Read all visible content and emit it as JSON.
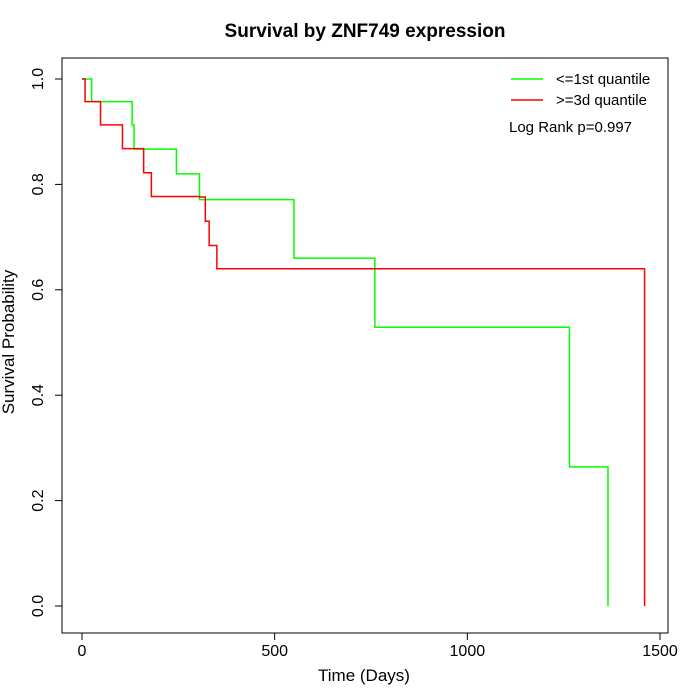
{
  "chart_data": {
    "type": "line",
    "title": "Survival by ZNF749 expression",
    "xlabel": "Time (Days)",
    "ylabel": "Survival Probability",
    "xlim": [
      0,
      1500
    ],
    "ylim": [
      0.0,
      1.0
    ],
    "x_ticks": [
      "0",
      "500",
      "1000",
      "1500"
    ],
    "y_ticks": [
      "0.0",
      "0.2",
      "0.4",
      "0.6",
      "0.8",
      "1.0"
    ],
    "legend_position": "top-right",
    "annotation": "Log Rank p=0.997",
    "series": [
      {
        "name": "<=1st quantile",
        "color": "#00ff00",
        "step": true,
        "x": [
          0,
          25,
          130,
          135,
          245,
          305,
          550,
          760,
          1265,
          1365
        ],
        "y": [
          1.0,
          0.957,
          0.913,
          0.867,
          0.82,
          0.771,
          0.66,
          0.529,
          0.264,
          0.0
        ]
      },
      {
        "name": ">=3d quantile",
        "color": "#ff0000",
        "step": true,
        "x": [
          0,
          8,
          48,
          105,
          160,
          180,
          305,
          320,
          330,
          350,
          1460
        ],
        "y": [
          1.0,
          0.957,
          0.913,
          0.868,
          0.822,
          0.777,
          0.776,
          0.73,
          0.684,
          0.64,
          0.0
        ]
      }
    ]
  }
}
